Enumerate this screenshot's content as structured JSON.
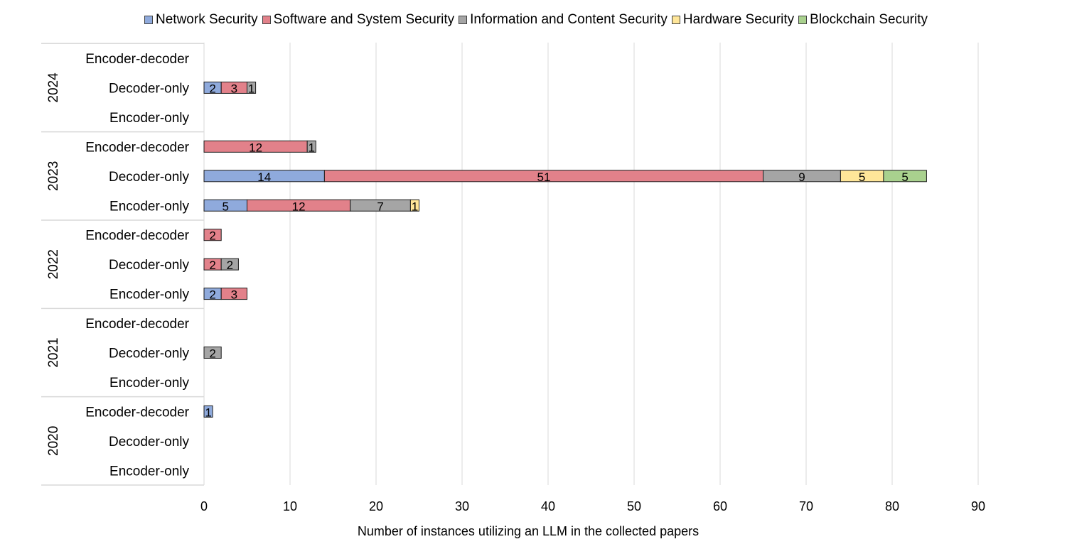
{
  "chart_data": {
    "type": "bar",
    "orientation": "horizontal",
    "stacked": true,
    "title": "",
    "xlabel": "Number of instances utilizing an LLM in the collected papers",
    "ylabel": "",
    "xlim": [
      0,
      90
    ],
    "xticks": [
      0,
      10,
      20,
      30,
      40,
      50,
      60,
      70,
      80,
      90
    ],
    "grid": "vertical",
    "legend_position": "top",
    "groups": [
      "2024",
      "2023",
      "2022",
      "2021",
      "2020"
    ],
    "subcategories": [
      "Encoder-decoder",
      "Decoder-only",
      "Encoder-only"
    ],
    "categories": [
      "2024 Encoder-decoder",
      "2024 Decoder-only",
      "2024 Encoder-only",
      "2023 Encoder-decoder",
      "2023 Decoder-only",
      "2023 Encoder-only",
      "2022 Encoder-decoder",
      "2022 Decoder-only",
      "2022 Encoder-only",
      "2021 Encoder-decoder",
      "2021 Decoder-only",
      "2021 Encoder-only",
      "2020 Encoder-decoder",
      "2020 Decoder-only",
      "2020 Encoder-only"
    ],
    "series": [
      {
        "name": "Network Security",
        "color": "#8faadc",
        "values": [
          0,
          2,
          0,
          0,
          14,
          5,
          0,
          0,
          2,
          0,
          0,
          0,
          1,
          0,
          0
        ]
      },
      {
        "name": "Software and System Security",
        "color": "#e2818a",
        "values": [
          0,
          3,
          0,
          12,
          51,
          12,
          2,
          2,
          3,
          0,
          0,
          0,
          0,
          0,
          0
        ]
      },
      {
        "name": "Information and Content Security",
        "color": "#a5a5a5",
        "values": [
          0,
          1,
          0,
          1,
          9,
          7,
          0,
          2,
          0,
          0,
          2,
          0,
          0,
          0,
          0
        ]
      },
      {
        "name": "Hardware Security",
        "color": "#ffe699",
        "values": [
          0,
          0,
          0,
          0,
          5,
          1,
          0,
          0,
          0,
          0,
          0,
          0,
          0,
          0,
          0
        ]
      },
      {
        "name": "Blockchain Security",
        "color": "#a9d18e",
        "values": [
          0,
          0,
          0,
          0,
          5,
          0,
          0,
          0,
          0,
          0,
          0,
          0,
          0,
          0,
          0
        ]
      }
    ]
  }
}
